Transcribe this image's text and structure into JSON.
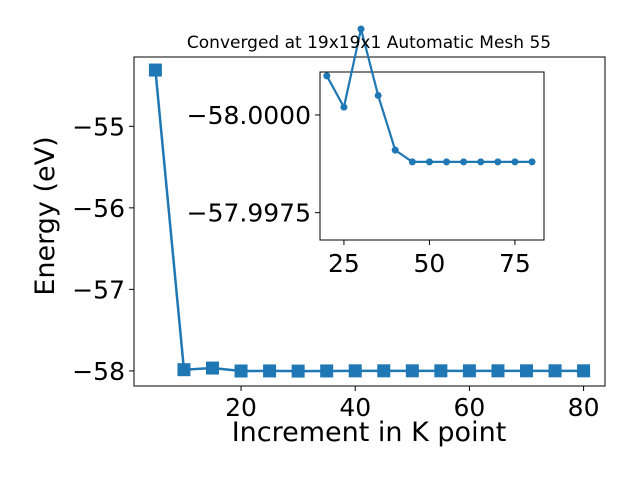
{
  "chart_data": [
    {
      "type": "line",
      "title": "Converged at 19x19x1 Automatic Mesh 55",
      "xlabel": "Increment in K point",
      "ylabel": "Energy (eV)",
      "xlim": [
        1.25,
        83.75
      ],
      "ylim": [
        -58.185,
        -54.15
      ],
      "xticks": [
        20,
        40,
        60,
        80
      ],
      "yticks": [
        -55,
        -56,
        -57,
        -58
      ],
      "xtick_labels": [
        "20",
        "40",
        "60",
        "80"
      ],
      "ytick_labels": [
        "−55",
        "−56",
        "−57",
        "−58"
      ],
      "marker": "square",
      "color": "#1f77b4",
      "x": [
        5,
        10,
        15,
        20,
        25,
        30,
        35,
        40,
        45,
        50,
        55,
        60,
        65,
        70,
        75,
        80
      ],
      "values": [
        -54.31,
        -57.985,
        -57.965,
        -58.001,
        -58.0002,
        -58.0022,
        -58.0005,
        -57.9991,
        -57.9988,
        -57.9988,
        -57.9988,
        -57.9988,
        -57.9988,
        -57.9988,
        -57.9988,
        -57.9988
      ]
    },
    {
      "type": "line",
      "inset": true,
      "xlim": [
        18,
        83.5
      ],
      "ylim": [
        -57.9968,
        -58.0011
      ],
      "xticks": [
        25,
        50,
        75
      ],
      "yticks": [
        -58.0,
        -57.9975
      ],
      "xtick_labels": [
        "25",
        "50",
        "75"
      ],
      "ytick_labels": [
        "−58.0000",
        "−57.9975"
      ],
      "marker": "circle",
      "color": "#1f77b4",
      "x": [
        20,
        25,
        30,
        35,
        40,
        45,
        50,
        55,
        60,
        65,
        70,
        75,
        80
      ],
      "values": [
        -58.001,
        -58.0002,
        -58.0022,
        -58.0005,
        -57.9991,
        -57.9988,
        -57.9988,
        -57.9988,
        -57.9988,
        -57.9988,
        -57.9988,
        -57.9988,
        -57.9988
      ]
    }
  ]
}
